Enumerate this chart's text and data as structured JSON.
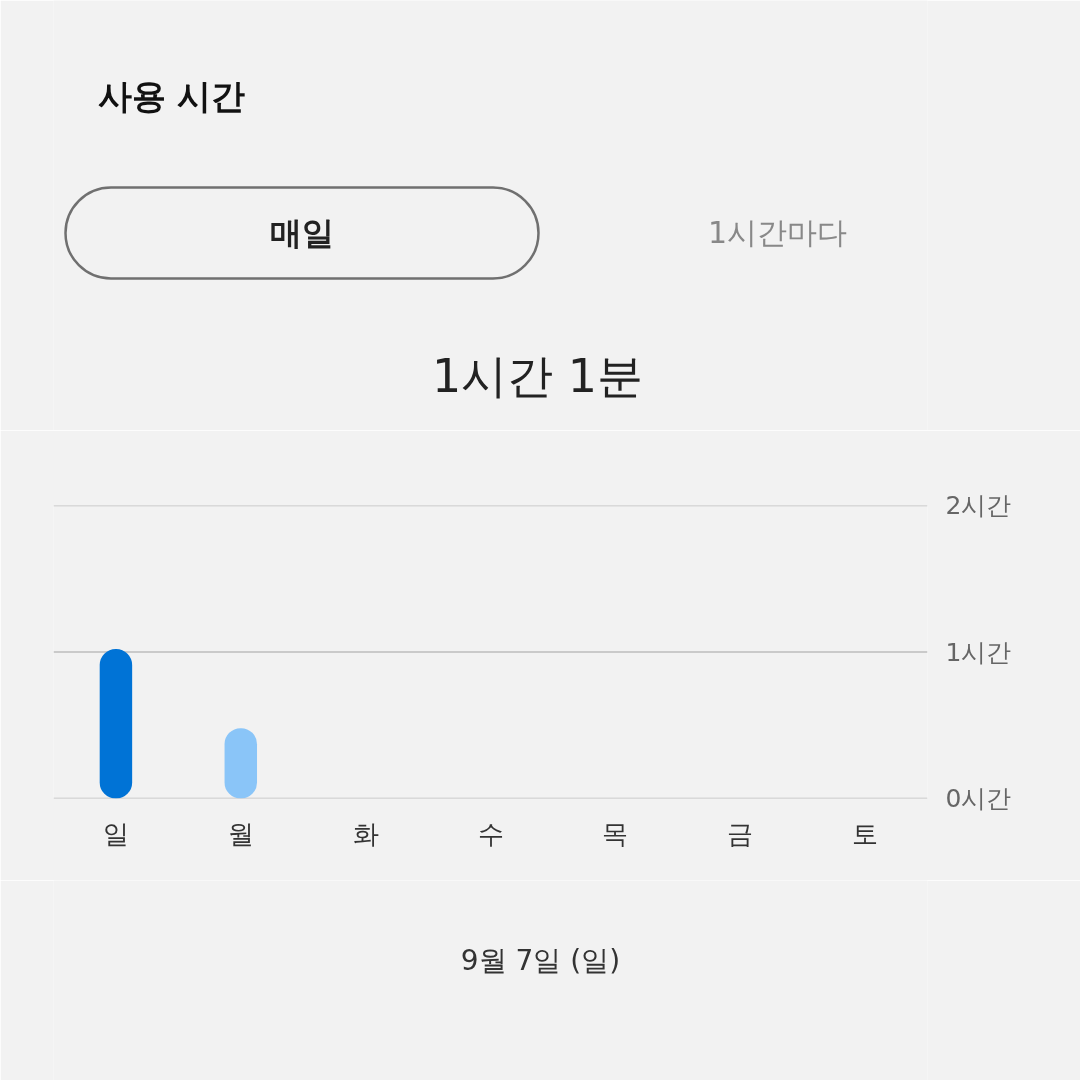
{
  "chart_data": {
    "type": "bar",
    "title": "1시간 1분",
    "annotations": [
      "사용 시간",
      "매일",
      "1시간마다",
      "9월 7일 (일)"
    ],
    "categories": [
      "일",
      "월",
      "화",
      "수",
      "목",
      "금",
      "토"
    ],
    "values": [
      1.02,
      0.48,
      null,
      null,
      null,
      null,
      null
    ],
    "colors": [
      "#0073d6",
      "#8ac5f8",
      null,
      null,
      null,
      null,
      null
    ],
    "ylim": [
      0,
      2
    ],
    "yticks": [
      {
        "value": 0,
        "label": "0시간"
      },
      {
        "value": 1,
        "label": "1시간"
      },
      {
        "value": 2,
        "label": "2시간"
      }
    ],
    "grid": "y"
  }
}
